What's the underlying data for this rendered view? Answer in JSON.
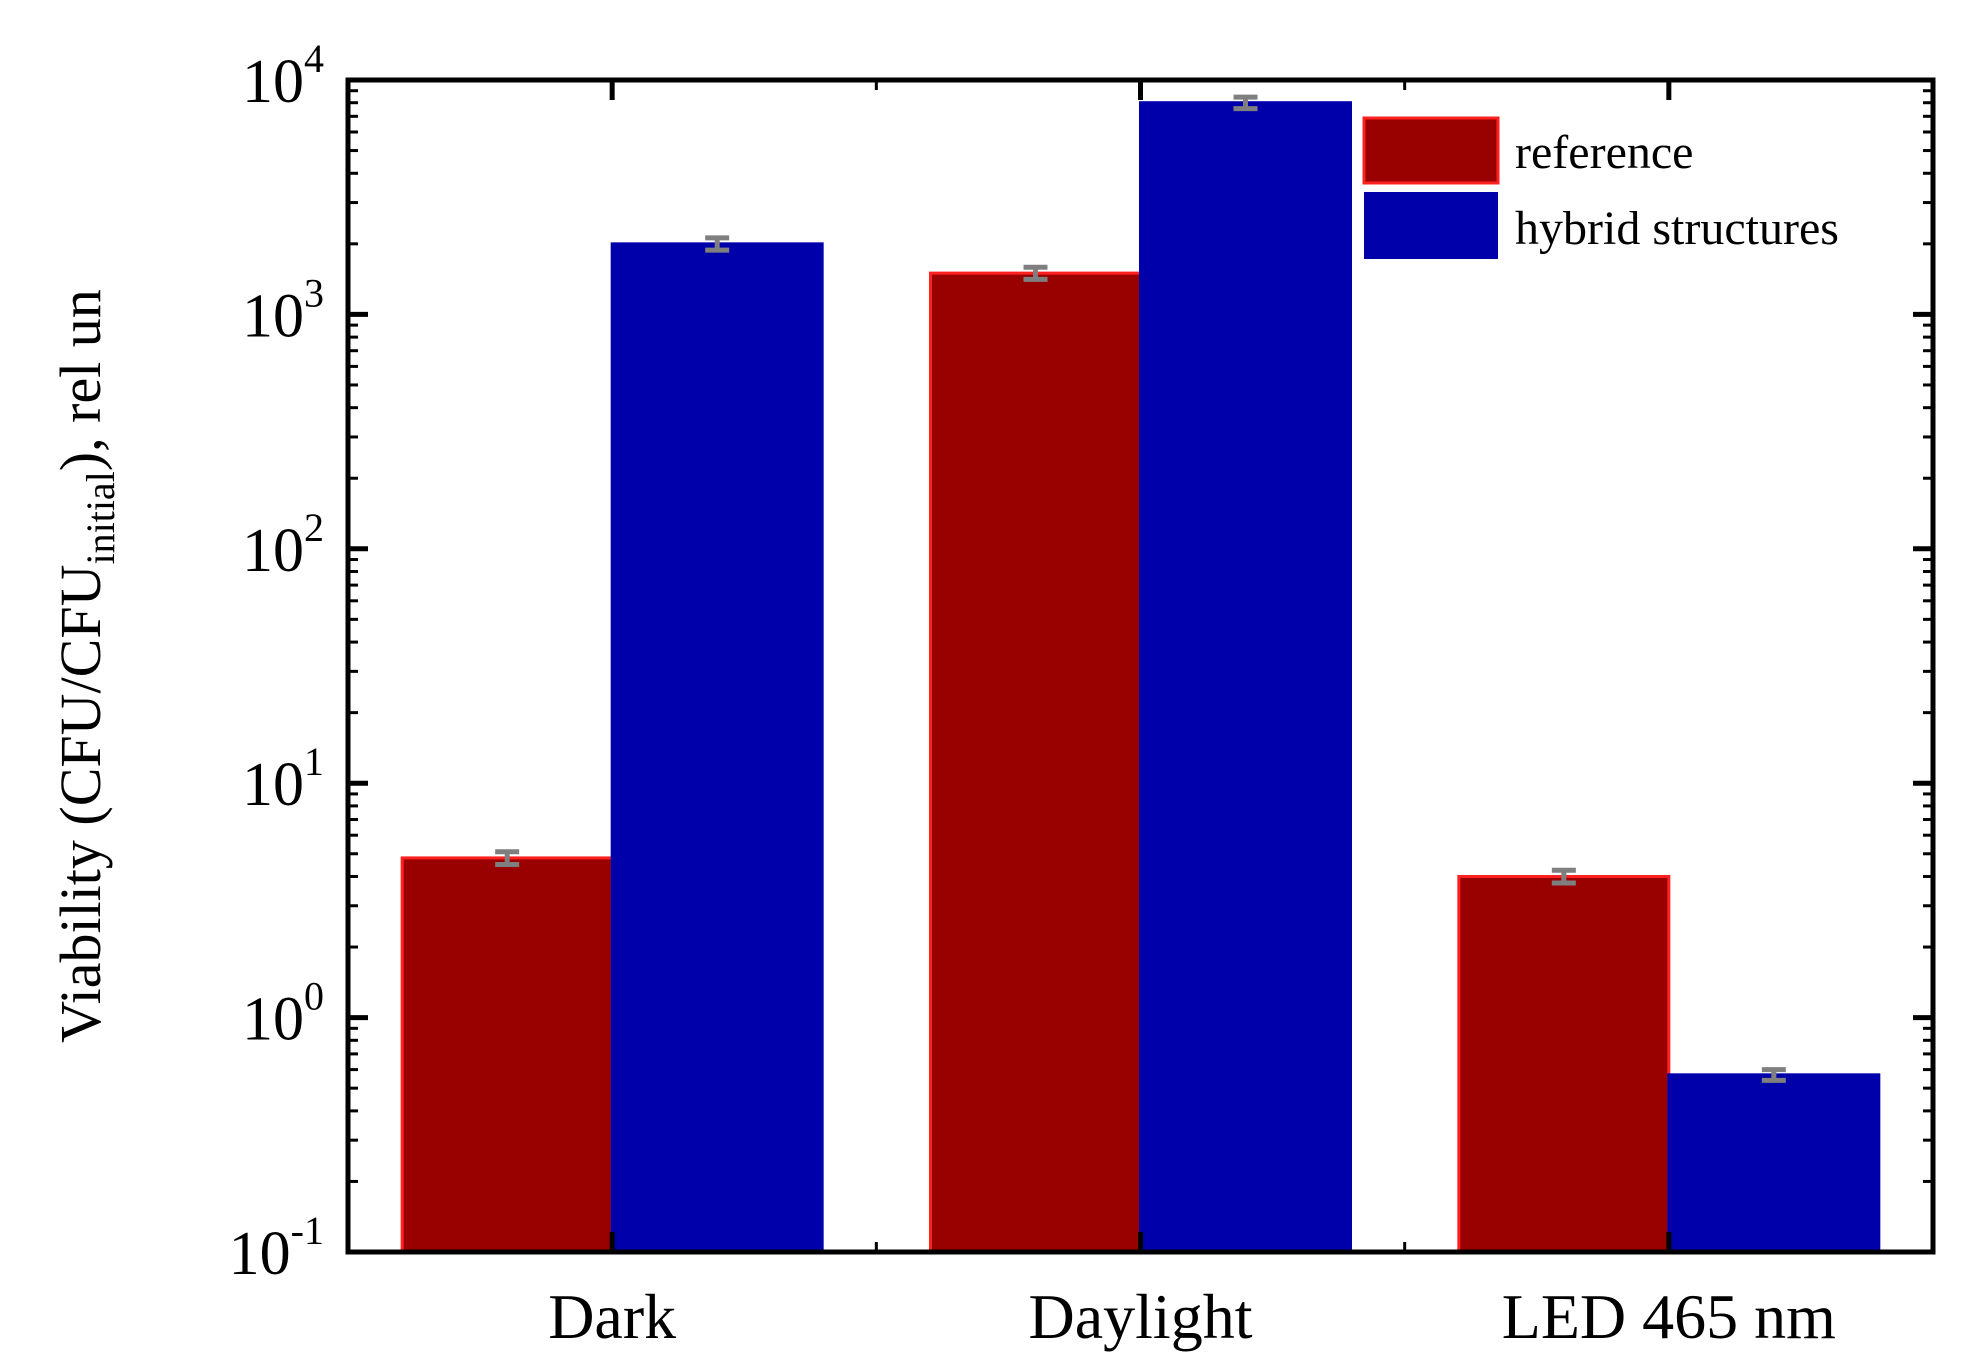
{
  "chart_data": {
    "type": "bar",
    "title": "",
    "xlabel": "",
    "ylabel": {
      "prefix": "Viability (CFU/CFU",
      "subscript": "initial",
      "suffix": "), rel un"
    },
    "yscale": "log",
    "ylim": [
      0.1,
      10000
    ],
    "categories": [
      "Dark",
      "Daylight",
      "LED 465 nm"
    ],
    "yticks": [
      {
        "value": 0.1,
        "base": "10",
        "exp": "-1"
      },
      {
        "value": 1,
        "base": "10",
        "exp": "0"
      },
      {
        "value": 10,
        "base": "10",
        "exp": "1"
      },
      {
        "value": 100,
        "base": "10",
        "exp": "2"
      },
      {
        "value": 1000,
        "base": "10",
        "exp": "3"
      },
      {
        "value": 10000,
        "base": "10",
        "exp": "4"
      }
    ],
    "series": [
      {
        "name": "reference",
        "color": "#990000",
        "edge": "#ff2020",
        "values": [
          4.8,
          1500,
          4.0
        ],
        "errors": [
          0.3,
          90,
          0.25
        ]
      },
      {
        "name": "hybrid structures",
        "color": "#0000aa",
        "edge": "#0000aa",
        "values": [
          2000,
          8000,
          0.57
        ],
        "errors": [
          120,
          450,
          0.03
        ]
      }
    ],
    "legend": {
      "position": "top-right"
    },
    "grid": false
  }
}
